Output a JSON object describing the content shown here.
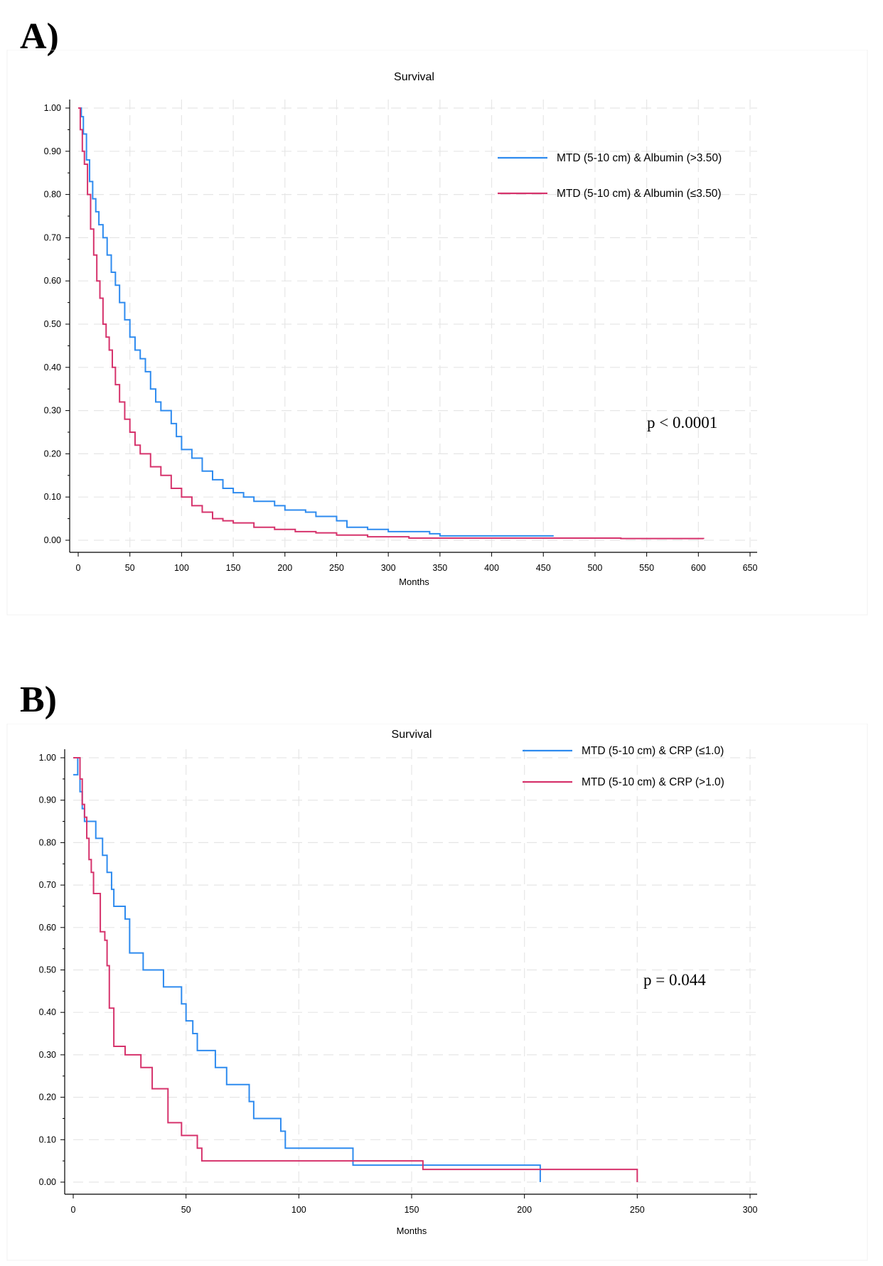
{
  "panels": [
    {
      "letter": "A)"
    },
    {
      "letter": "B)"
    }
  ],
  "chart_data": [
    {
      "type": "line",
      "title": "Survival",
      "xlabel": "Months",
      "ylabel": "",
      "xlim": [
        0,
        650
      ],
      "ylim": [
        0,
        1
      ],
      "x_ticks": [
        "0",
        "50",
        "100",
        "150",
        "200",
        "250",
        "300",
        "350",
        "400",
        "450",
        "500",
        "550",
        "600",
        "650"
      ],
      "y_ticks": [
        "0.00",
        "0.10",
        "0.20",
        "0.30",
        "0.40",
        "0.50",
        "0.60",
        "0.70",
        "0.80",
        "0.90",
        "1.00"
      ],
      "grid": true,
      "legend_position": "top-right",
      "annotation": "p < 0.0001",
      "colors": {
        "series_1": "#2E8BEF",
        "series_2": "#D6336C"
      },
      "series": [
        {
          "name": "MTD (5-10 cm) & Albumin (>3.50)",
          "color": "#2E8BEF",
          "points": [
            [
              0,
              1.0
            ],
            [
              3,
              0.98
            ],
            [
              5,
              0.94
            ],
            [
              8,
              0.88
            ],
            [
              11,
              0.83
            ],
            [
              14,
              0.79
            ],
            [
              17,
              0.76
            ],
            [
              20,
              0.73
            ],
            [
              24,
              0.7
            ],
            [
              28,
              0.66
            ],
            [
              32,
              0.62
            ],
            [
              36,
              0.59
            ],
            [
              40,
              0.55
            ],
            [
              45,
              0.51
            ],
            [
              50,
              0.47
            ],
            [
              55,
              0.44
            ],
            [
              60,
              0.42
            ],
            [
              65,
              0.39
            ],
            [
              70,
              0.35
            ],
            [
              75,
              0.32
            ],
            [
              80,
              0.3
            ],
            [
              90,
              0.27
            ],
            [
              95,
              0.24
            ],
            [
              100,
              0.21
            ],
            [
              110,
              0.19
            ],
            [
              120,
              0.16
            ],
            [
              130,
              0.14
            ],
            [
              140,
              0.12
            ],
            [
              150,
              0.11
            ],
            [
              160,
              0.1
            ],
            [
              170,
              0.09
            ],
            [
              190,
              0.08
            ],
            [
              200,
              0.07
            ],
            [
              220,
              0.065
            ],
            [
              230,
              0.055
            ],
            [
              250,
              0.045
            ],
            [
              260,
              0.03
            ],
            [
              280,
              0.025
            ],
            [
              300,
              0.02
            ],
            [
              320,
              0.02
            ],
            [
              340,
              0.015
            ],
            [
              350,
              0.01
            ],
            [
              400,
              0.01
            ],
            [
              460,
              0.01
            ]
          ]
        },
        {
          "name": "MTD (5-10 cm) & Albumin (≤3.50)",
          "color": "#D6336C",
          "points": [
            [
              0,
              1.0
            ],
            [
              2,
              0.95
            ],
            [
              4,
              0.9
            ],
            [
              6,
              0.87
            ],
            [
              9,
              0.8
            ],
            [
              12,
              0.72
            ],
            [
              15,
              0.66
            ],
            [
              18,
              0.6
            ],
            [
              21,
              0.56
            ],
            [
              24,
              0.5
            ],
            [
              27,
              0.47
            ],
            [
              30,
              0.44
            ],
            [
              33,
              0.4
            ],
            [
              36,
              0.36
            ],
            [
              40,
              0.32
            ],
            [
              45,
              0.28
            ],
            [
              50,
              0.25
            ],
            [
              55,
              0.22
            ],
            [
              60,
              0.2
            ],
            [
              70,
              0.17
            ],
            [
              80,
              0.15
            ],
            [
              90,
              0.12
            ],
            [
              100,
              0.1
            ],
            [
              110,
              0.08
            ],
            [
              120,
              0.065
            ],
            [
              130,
              0.05
            ],
            [
              140,
              0.045
            ],
            [
              150,
              0.04
            ],
            [
              170,
              0.03
            ],
            [
              190,
              0.025
            ],
            [
              210,
              0.02
            ],
            [
              230,
              0.017
            ],
            [
              250,
              0.012
            ],
            [
              280,
              0.008
            ],
            [
              320,
              0.005
            ],
            [
              400,
              0.005
            ],
            [
              525,
              0.004
            ],
            [
              605,
              0.003
            ]
          ]
        }
      ]
    },
    {
      "type": "line",
      "title": "Survival",
      "xlabel": "Months",
      "ylabel": "",
      "xlim": [
        0,
        300
      ],
      "ylim": [
        0,
        1
      ],
      "x_ticks": [
        "0",
        "50",
        "100",
        "150",
        "200",
        "250",
        "300"
      ],
      "y_ticks": [
        "0.00",
        "0.10",
        "0.20",
        "0.30",
        "0.40",
        "0.50",
        "0.60",
        "0.70",
        "0.80",
        "0.90",
        "1.00"
      ],
      "grid": true,
      "legend_position": "top-right",
      "annotation": "p = 0.044",
      "colors": {
        "series_1": "#2E8BEF",
        "series_2": "#D6336C"
      },
      "series": [
        {
          "name": "MTD (5-10 cm) & CRP (≤1.0)",
          "color": "#2E8BEF",
          "points": [
            [
              0,
              0.96
            ],
            [
              2,
              1.0
            ],
            [
              3,
              0.92
            ],
            [
              4,
              0.88
            ],
            [
              5,
              0.85
            ],
            [
              10,
              0.81
            ],
            [
              13,
              0.77
            ],
            [
              15,
              0.73
            ],
            [
              17,
              0.69
            ],
            [
              18,
              0.65
            ],
            [
              23,
              0.62
            ],
            [
              25,
              0.54
            ],
            [
              31,
              0.5
            ],
            [
              40,
              0.46
            ],
            [
              48,
              0.42
            ],
            [
              50,
              0.38
            ],
            [
              53,
              0.35
            ],
            [
              55,
              0.31
            ],
            [
              63,
              0.27
            ],
            [
              68,
              0.23
            ],
            [
              78,
              0.19
            ],
            [
              80,
              0.15
            ],
            [
              92,
              0.12
            ],
            [
              94,
              0.08
            ],
            [
              124,
              0.04
            ],
            [
              207,
              0.04
            ],
            [
              207,
              0.0
            ]
          ]
        },
        {
          "name": "MTD (5-10 cm) & CRP (>1.0)",
          "color": "#D6336C",
          "points": [
            [
              0,
              1.0
            ],
            [
              3,
              0.95
            ],
            [
              4,
              0.89
            ],
            [
              5,
              0.86
            ],
            [
              6,
              0.81
            ],
            [
              7,
              0.76
            ],
            [
              8,
              0.73
            ],
            [
              9,
              0.68
            ],
            [
              12,
              0.59
            ],
            [
              14,
              0.57
            ],
            [
              15,
              0.51
            ],
            [
              16,
              0.41
            ],
            [
              18,
              0.32
            ],
            [
              23,
              0.3
            ],
            [
              30,
              0.27
            ],
            [
              35,
              0.22
            ],
            [
              42,
              0.14
            ],
            [
              48,
              0.11
            ],
            [
              55,
              0.08
            ],
            [
              57,
              0.05
            ],
            [
              155,
              0.03
            ],
            [
              250,
              0.03
            ],
            [
              250,
              0.0
            ]
          ]
        }
      ]
    }
  ]
}
